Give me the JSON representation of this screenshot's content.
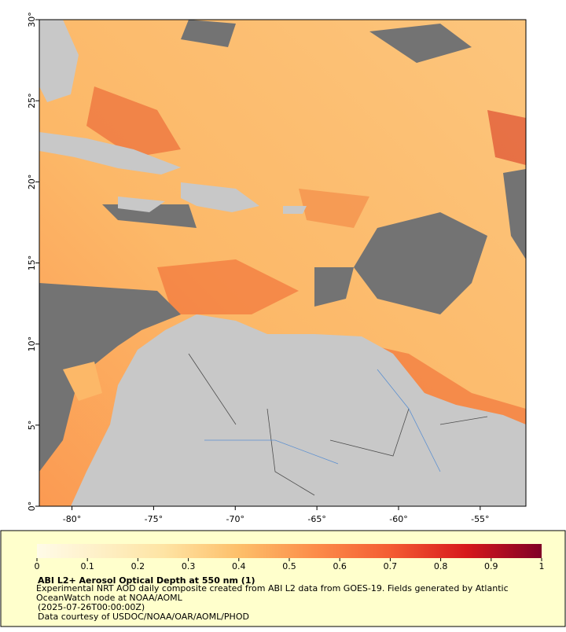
{
  "map": {
    "xlim": [
      -82,
      -52.2
    ],
    "ylim": [
      0,
      30
    ],
    "xticks": [
      {
        "value": -80,
        "label": "-80°"
      },
      {
        "value": -75,
        "label": "-75°"
      },
      {
        "value": -70,
        "label": "-70°"
      },
      {
        "value": -65,
        "label": "-65°"
      },
      {
        "value": -60,
        "label": "-60°"
      },
      {
        "value": -55,
        "label": "-55°"
      }
    ],
    "yticks": [
      {
        "value": 0,
        "label": "0°"
      },
      {
        "value": 5,
        "label": "5°"
      },
      {
        "value": 10,
        "label": "10°"
      },
      {
        "value": 15,
        "label": "15°"
      },
      {
        "value": 20,
        "label": "20°"
      },
      {
        "value": 25,
        "label": "25°"
      },
      {
        "value": 30,
        "label": "30°"
      }
    ]
  },
  "colorbar": {
    "lim": [
      0,
      1
    ],
    "ticks": [
      0,
      0.1,
      0.2,
      0.3,
      0.4,
      0.5,
      0.6,
      0.7,
      0.8,
      0.9,
      1
    ]
  },
  "legend": {
    "title": "ABI L2+ Aerosol Optical Depth at 550 nm (1)",
    "description": "Experimental NRT AOD daily composite created from ABI L2 data from GOES-19. Fields generated by Atlantic OceanWatch node at NOAA/AOML",
    "time": "(2025-07-26T00:00:00Z)",
    "credit": "Data courtesy of USDOC/NOAA/OAR/AOML/PHOD"
  }
}
